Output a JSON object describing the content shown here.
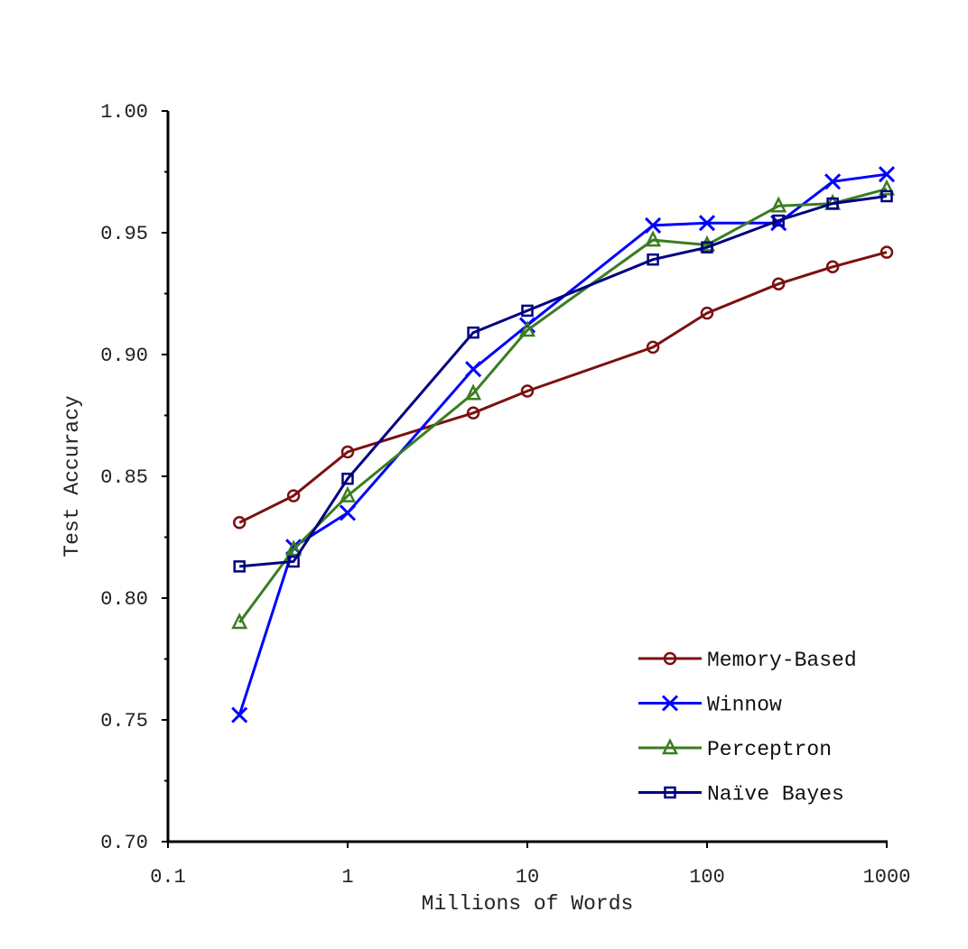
{
  "chart_data": {
    "type": "line",
    "title": "",
    "xlabel": "Millions of Words",
    "ylabel": "Test Accuracy",
    "xscale": "log",
    "xlim": [
      0.1,
      1000
    ],
    "ylim": [
      0.7,
      1.0
    ],
    "grid": false,
    "legend_position": "bottom-right",
    "x_tick_labels": [
      "0.1",
      "1",
      "10",
      "100",
      "1000"
    ],
    "x_ticks": [
      0.1,
      1,
      10,
      100,
      1000
    ],
    "y_tick_labels": [
      "0.70",
      "0.75",
      "0.80",
      "0.85",
      "0.90",
      "0.95",
      "1.00"
    ],
    "y_ticks": [
      0.7,
      0.75,
      0.8,
      0.85,
      0.9,
      0.95,
      1.0
    ],
    "x": [
      0.25,
      0.5,
      1,
      5,
      10,
      50,
      100,
      250,
      500,
      1000
    ],
    "series": [
      {
        "name": "Memory-Based",
        "color": "#7b1010",
        "marker": "circle",
        "values": [
          0.831,
          0.842,
          0.86,
          0.876,
          0.885,
          0.903,
          0.917,
          0.929,
          0.936,
          0.942
        ]
      },
      {
        "name": "Winnow",
        "color": "#0000ff",
        "marker": "x",
        "values": [
          0.752,
          0.821,
          0.835,
          0.894,
          0.912,
          0.953,
          0.954,
          0.954,
          0.971,
          0.974
        ]
      },
      {
        "name": "Perceptron",
        "color": "#3a7d22",
        "marker": "triangle",
        "values": [
          0.79,
          0.82,
          0.842,
          0.884,
          0.91,
          0.947,
          0.945,
          0.961,
          0.962,
          0.968
        ]
      },
      {
        "name": "Naïve Bayes",
        "color": "#000080",
        "marker": "square",
        "values": [
          0.813,
          0.815,
          0.849,
          0.909,
          0.918,
          0.939,
          0.944,
          0.955,
          0.962,
          0.965
        ]
      }
    ]
  }
}
